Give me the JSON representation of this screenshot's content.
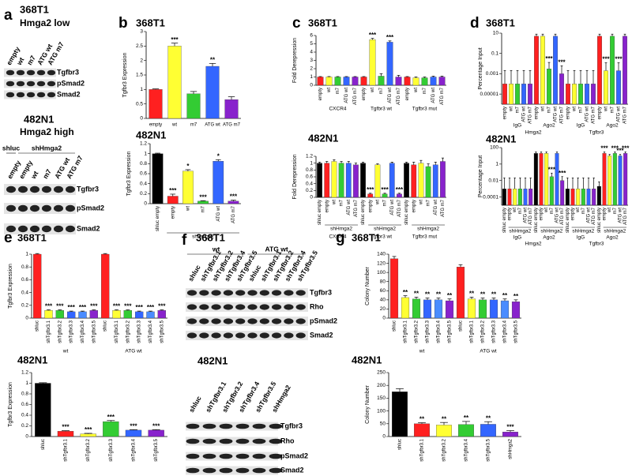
{
  "chart_data": [
    {
      "panel": "b",
      "type": "bar",
      "title": "368T1",
      "ylabel": "Tgfbr3 Expression",
      "categories": [
        "empty",
        "wt",
        "m7",
        "ATG wt",
        "ATG m7"
      ],
      "values": [
        1,
        2.5,
        0.85,
        1.8,
        0.65
      ],
      "errors": [
        0.02,
        0.1,
        0.08,
        0.1,
        0.1
      ],
      "annotations": [
        null,
        "***",
        null,
        "**",
        null
      ],
      "colors": [
        "#ff2020",
        "#ffff33",
        "#33cc33",
        "#3366ff",
        "#8822cc"
      ],
      "ylim": [
        0,
        3
      ],
      "yticks": [
        0,
        0.5,
        1,
        1.5,
        2,
        2.5,
        3
      ]
    },
    {
      "type": "bar",
      "title": "482N1",
      "ylabel": "Tgfbr3 Expression",
      "categories": [
        "shluc empty",
        "empty",
        "wt",
        "m7",
        "ATG wt",
        "ATG m7"
      ],
      "subgroup_label": "shHmga2",
      "values": [
        1,
        0.15,
        0.65,
        0.05,
        0.85,
        0.05
      ],
      "errors": [
        0.01,
        0.04,
        0.03,
        0.01,
        0.03,
        0.02
      ],
      "annotations": [
        null,
        "***",
        "*",
        "***",
        "*",
        "***"
      ],
      "colors": [
        "#000000",
        "#ff2020",
        "#ffff33",
        "#33cc33",
        "#3366ff",
        "#8822cc"
      ],
      "ylim": [
        0,
        1.2
      ],
      "yticks": [
        0,
        0.2,
        0.4,
        0.6,
        0.8,
        1,
        1.2
      ]
    },
    {
      "panel": "c",
      "type": "bar",
      "title": "368T1",
      "ylabel": "Fold Derepression",
      "categories": [
        "empty",
        "wt",
        "m7",
        "ATG wt",
        "ATG m7",
        "empty",
        "wt",
        "m7",
        "ATG wt",
        "ATG m7",
        "empty",
        "wt",
        "m7",
        "ATG wt",
        "ATG m7"
      ],
      "group_labels": [
        "CXCR4",
        "Tgfbr3 wt",
        "Tgfbr3 mut"
      ],
      "values": [
        1,
        1,
        1,
        1,
        1,
        1,
        5.5,
        1.1,
        5.2,
        1,
        1,
        0.9,
        0.9,
        1,
        1
      ],
      "errors": [
        0.05,
        0.05,
        0.05,
        0.05,
        0.05,
        0.05,
        0.15,
        0.3,
        0.15,
        0.2,
        0.05,
        0.1,
        0.1,
        0.1,
        0.1
      ],
      "annotations": [
        null,
        null,
        null,
        null,
        null,
        null,
        "***",
        null,
        "***",
        null,
        null,
        null,
        null,
        null,
        null
      ],
      "colors": [
        "#ff2020",
        "#ffff33",
        "#33cc33",
        "#3366ff",
        "#8822cc",
        "#ff2020",
        "#ffff33",
        "#33cc33",
        "#3366ff",
        "#8822cc",
        "#ff2020",
        "#ffff33",
        "#33cc33",
        "#3366ff",
        "#8822cc"
      ],
      "ylim": [
        0,
        6
      ],
      "yticks": [
        0,
        1,
        2,
        3,
        4,
        5,
        6
      ]
    },
    {
      "type": "bar",
      "title": "482N1",
      "ylabel": "Fold Derepression",
      "categories": [
        "shluc empty",
        "empty",
        "wt",
        "m7",
        "ATG wt",
        "ATG m7",
        "shluc empty",
        "empty",
        "wt",
        "m7",
        "ATG wt",
        "ATG m7",
        "shluc empty",
        "empty",
        "wt",
        "m7",
        "ATG wt",
        "ATG m7"
      ],
      "subgroup_label": "shHmga2",
      "group_labels": [
        "CXCR4",
        "Tgfbr3 wt",
        "Tgfbr3 mut"
      ],
      "values": [
        1,
        1,
        1.05,
        1,
        1,
        0.95,
        1,
        0.1,
        0.95,
        0.1,
        1,
        0.1,
        1,
        0.95,
        1,
        0.9,
        0.95,
        1.05
      ],
      "errors": [
        0.03,
        0.05,
        0.05,
        0.05,
        0.05,
        0.05,
        0.03,
        0.02,
        0.03,
        0.02,
        0.03,
        0.02,
        0.03,
        0.08,
        0.08,
        0.08,
        0.08,
        0.1
      ],
      "annotations": [
        null,
        null,
        null,
        null,
        null,
        null,
        null,
        "***",
        null,
        "***",
        null,
        "***",
        null,
        null,
        null,
        null,
        null,
        null
      ],
      "colors": [
        "#000000",
        "#ff2020",
        "#ffff33",
        "#33cc33",
        "#3366ff",
        "#8822cc",
        "#000000",
        "#ff2020",
        "#ffff33",
        "#33cc33",
        "#3366ff",
        "#8822cc",
        "#000000",
        "#ff2020",
        "#ffff33",
        "#33cc33",
        "#3366ff",
        "#8822cc"
      ],
      "ylim": [
        0,
        1.2
      ],
      "yticks": [
        0,
        0.2,
        0.4,
        0.6,
        0.8,
        1,
        1.2
      ]
    },
    {
      "panel": "d",
      "type": "bar",
      "title": "368T1",
      "ylabel": "Percentage Input",
      "log_scale": true,
      "categories": [
        "empty",
        "wt",
        "m7",
        "ATG wt",
        "ATG m7",
        "empty",
        "wt",
        "m7",
        "ATG wt",
        "ATG m7",
        "empty",
        "wt",
        "m7",
        "ATG wt",
        "ATG m7",
        "empty",
        "wt",
        "m7",
        "ATG wt",
        "ATG m7"
      ],
      "group_labels": [
        "IgG",
        "Ago2",
        "IgG",
        "Ago2"
      ],
      "super_group_labels": [
        "Hmga2",
        "Tgfbr3"
      ],
      "values": [
        0.0001,
        0.0001,
        0.0001,
        0.0001,
        0.0001,
        5,
        5,
        0.003,
        5,
        0.001,
        0.0001,
        0.0001,
        0.0001,
        0.0001,
        0.0001,
        5,
        0.002,
        5,
        0.002,
        5
      ],
      "errors": [
        0.002,
        0.002,
        0.002,
        0.002,
        0.002,
        3,
        3,
        0.01,
        3,
        0.005,
        0.002,
        0.002,
        0.002,
        0.002,
        0.002,
        3,
        0.01,
        3,
        0.01,
        3
      ],
      "annotations": [
        null,
        null,
        null,
        null,
        null,
        null,
        null,
        "***",
        null,
        "***",
        null,
        null,
        null,
        null,
        null,
        null,
        "***",
        null,
        "***",
        null
      ],
      "colors": [
        "#ff2020",
        "#ffff33",
        "#33cc33",
        "#3366ff",
        "#8822cc",
        "#ff2020",
        "#ffff33",
        "#33cc33",
        "#3366ff",
        "#8822cc",
        "#ff2020",
        "#ffff33",
        "#33cc33",
        "#3366ff",
        "#8822cc",
        "#ff2020",
        "#ffff33",
        "#33cc33",
        "#3366ff",
        "#8822cc"
      ],
      "ylim": [
        1e-06,
        10
      ],
      "yticks": [
        1e-05,
        0.001,
        0.1,
        10
      ]
    },
    {
      "type": "bar",
      "title": "482N1",
      "ylabel": "Percentage Input",
      "log_scale": true,
      "categories": [
        "shluc empty",
        "empty",
        "wt",
        "m7",
        "ATG wt",
        "ATG m7",
        "shluc empty",
        "empty",
        "wt",
        "m7",
        "ATG wt",
        "ATG m7",
        "shluc empty",
        "empty",
        "wt",
        "m7",
        "ATG wt",
        "ATG m7",
        "shluc empty",
        "empty",
        "wt",
        "m7",
        "ATG wt",
        "ATG m7"
      ],
      "subgroup_label": "shHmga2",
      "group_labels": [
        "IgG",
        "Ago2",
        "IgG",
        "Ago2"
      ],
      "super_group_labels": [
        "Hmga2",
        "Tgfbr3"
      ],
      "values": [
        0.001,
        0.001,
        0.001,
        0.001,
        0.001,
        0.001,
        20,
        20,
        20,
        0.03,
        20,
        0.01,
        0.001,
        0.001,
        0.001,
        0.001,
        0.001,
        0.001,
        0.002,
        20,
        10,
        20,
        10,
        20
      ],
      "errors": [
        0.02,
        0.02,
        0.02,
        0.02,
        0.02,
        0.02,
        10,
        10,
        10,
        0.05,
        10,
        0.02,
        0.02,
        0.02,
        0.02,
        0.02,
        0.02,
        0.02,
        0.005,
        10,
        5,
        10,
        5,
        10
      ],
      "annotations": [
        null,
        null,
        null,
        null,
        null,
        null,
        null,
        null,
        null,
        "***",
        null,
        "***",
        null,
        null,
        null,
        null,
        null,
        null,
        null,
        "***",
        null,
        "***",
        "***",
        "***"
      ],
      "colors": [
        "#000000",
        "#ff2020",
        "#ffff33",
        "#33cc33",
        "#3366ff",
        "#8822cc",
        "#000000",
        "#ff2020",
        "#ffff33",
        "#33cc33",
        "#3366ff",
        "#8822cc",
        "#000000",
        "#ff2020",
        "#ffff33",
        "#33cc33",
        "#3366ff",
        "#8822cc",
        "#000000",
        "#ff2020",
        "#ffff33",
        "#33cc33",
        "#3366ff",
        "#8822cc"
      ],
      "ylim": [
        1e-05,
        100
      ],
      "yticks": [
        0.0001,
        0.01,
        1,
        100
      ]
    },
    {
      "panel": "e",
      "type": "bar",
      "title": "368T1",
      "ylabel": "Tgfbr3 Expression",
      "categories": [
        "shluc",
        "shTgfbr3.1",
        "shTgfbr3.2",
        "shTgfbr3.3",
        "shTgfbr3.4",
        "shTgfbr3.5",
        "shluc",
        "shTgfbr3.1",
        "shTgfbr3.2",
        "shTgfbr3.3",
        "shTgfbr3.4",
        "shTgfbr3.5"
      ],
      "group_labels": [
        "wt",
        "ATG wt"
      ],
      "values": [
        1,
        0.12,
        0.12,
        0.1,
        0.1,
        0.12,
        1,
        0.12,
        0.12,
        0.1,
        0.1,
        0.12
      ],
      "errors": [
        0.01,
        0.01,
        0.01,
        0.01,
        0.01,
        0.01,
        0.01,
        0.01,
        0.01,
        0.01,
        0.01,
        0.01
      ],
      "annotations": [
        null,
        "***",
        "***",
        "***",
        "***",
        "***",
        null,
        "***",
        "***",
        "***",
        "***",
        "***"
      ],
      "colors": [
        "#ff2020",
        "#ffff33",
        "#33cc33",
        "#3366ff",
        "#4a8cff",
        "#8822cc",
        "#ff2020",
        "#ffff33",
        "#33cc33",
        "#3366ff",
        "#4a8cff",
        "#8822cc"
      ],
      "ylim": [
        0,
        1
      ],
      "yticks": [
        0,
        0.2,
        0.4,
        0.6,
        0.8,
        1
      ]
    },
    {
      "type": "bar",
      "title": "482N1",
      "ylabel": "Tgfbr3 Expression",
      "categories": [
        "shluc",
        "shTgfbr3.1",
        "shTgfbr3.2",
        "shTgfbr3.3",
        "shTgfbr3.4",
        "shTgfbr3.5"
      ],
      "values": [
        1,
        0.1,
        0.05,
        0.28,
        0.12,
        0.12
      ],
      "errors": [
        0.01,
        0.01,
        0.01,
        0.02,
        0.01,
        0.01
      ],
      "annotations": [
        null,
        "***",
        "***",
        "***",
        "***",
        "***"
      ],
      "colors": [
        "#000000",
        "#ff2020",
        "#ffff33",
        "#33cc33",
        "#3366ff",
        "#8822cc"
      ],
      "ylim": [
        0,
        1.2
      ],
      "yticks": [
        0,
        0.2,
        0.4,
        0.6,
        0.8,
        1,
        1.2
      ]
    },
    {
      "panel": "g",
      "type": "bar",
      "title": "368T1",
      "ylabel": "Colony Number",
      "categories": [
        "shluc",
        "shTgfbr3.1",
        "shTgfbr3.2",
        "shTgfbr3.3",
        "shTgfbr3.4",
        "shTgfbr3.5",
        "shluc",
        "shTgfbr3.1",
        "shTgfbr3.2",
        "shTgfbr3.3",
        "shTgfbr3.4",
        "shTgfbr3.5"
      ],
      "group_labels": [
        "wt",
        "ATG wt"
      ],
      "values": [
        130,
        45,
        42,
        40,
        40,
        38,
        112,
        42,
        40,
        40,
        38,
        36
      ],
      "errors": [
        5,
        4,
        4,
        4,
        4,
        4,
        5,
        4,
        4,
        4,
        4,
        4
      ],
      "annotations": [
        null,
        "**",
        "**",
        "**",
        "**",
        "**",
        null,
        "**",
        "**",
        "**",
        "**",
        "**"
      ],
      "colors": [
        "#ff2020",
        "#ffff33",
        "#33cc33",
        "#3366ff",
        "#4a8cff",
        "#8822cc",
        "#ff2020",
        "#ffff33",
        "#33cc33",
        "#3366ff",
        "#4a8cff",
        "#8822cc"
      ],
      "ylim": [
        0,
        140
      ],
      "yticks": [
        0,
        20,
        40,
        60,
        80,
        100,
        120,
        140
      ]
    },
    {
      "type": "bar",
      "title": "482N1",
      "ylabel": "Colony Number",
      "categories": [
        "shluc",
        "shTgfbr3.1",
        "shTgfbr3.2",
        "shTgfbr3.4",
        "shTgfbr3.5",
        "shHmga2"
      ],
      "values": [
        175,
        50,
        45,
        47,
        48,
        18
      ],
      "errors": [
        12,
        4,
        10,
        12,
        10,
        5
      ],
      "annotations": [
        null,
        "**",
        "**",
        "**",
        "**",
        "***"
      ],
      "colors": [
        "#000000",
        "#ff2020",
        "#ffff33",
        "#33cc33",
        "#3366ff",
        "#8822cc"
      ],
      "ylim": [
        0,
        250
      ],
      "yticks": [
        0,
        50,
        100,
        150,
        200,
        250
      ]
    }
  ],
  "blots": [
    {
      "panel": "a",
      "title": "368T1",
      "subtitle": "Hmga2 low",
      "lanes": [
        "empty",
        "wt",
        "m7",
        "ATG wt",
        "ATG m7"
      ],
      "rows": [
        "Tgfbr3",
        "pSmad2",
        "Smad2"
      ]
    },
    {
      "title": "482N1",
      "subtitle": "Hmga2 high",
      "lane_groups": [
        "shluc",
        "shHmga2"
      ],
      "lanes": [
        "empty",
        "empty",
        "wt",
        "m7",
        "ATG wt",
        "ATG m7"
      ],
      "rows": [
        "Tgfbr3",
        "pSmad2",
        "Smad2"
      ]
    },
    {
      "panel": "f",
      "title": "368T1",
      "lane_groups": [
        "wt",
        "ATG wt"
      ],
      "lanes": [
        "shluc",
        "shTgfbr3.1",
        "shTgfbr3.2",
        "shTgfbr3.4",
        "shTgfbr3.5",
        "shluc",
        "shTgfbr3.1",
        "shTgfbr3.2",
        "shTgfbr3.4",
        "shTgfbr3.5"
      ],
      "rows": [
        "Tgfbr3",
        "Rho",
        "pSmad2",
        "Smad2"
      ]
    },
    {
      "title": "482N1",
      "lanes": [
        "shluc",
        "shTgfbr3.1",
        "shTgfbr3.2",
        "shTgfbr3.4",
        "shTgfbr3.5",
        "shHmga2"
      ],
      "rows": [
        "Tgfbr3",
        "Rho",
        "pSmad2",
        "Smad2"
      ]
    }
  ]
}
